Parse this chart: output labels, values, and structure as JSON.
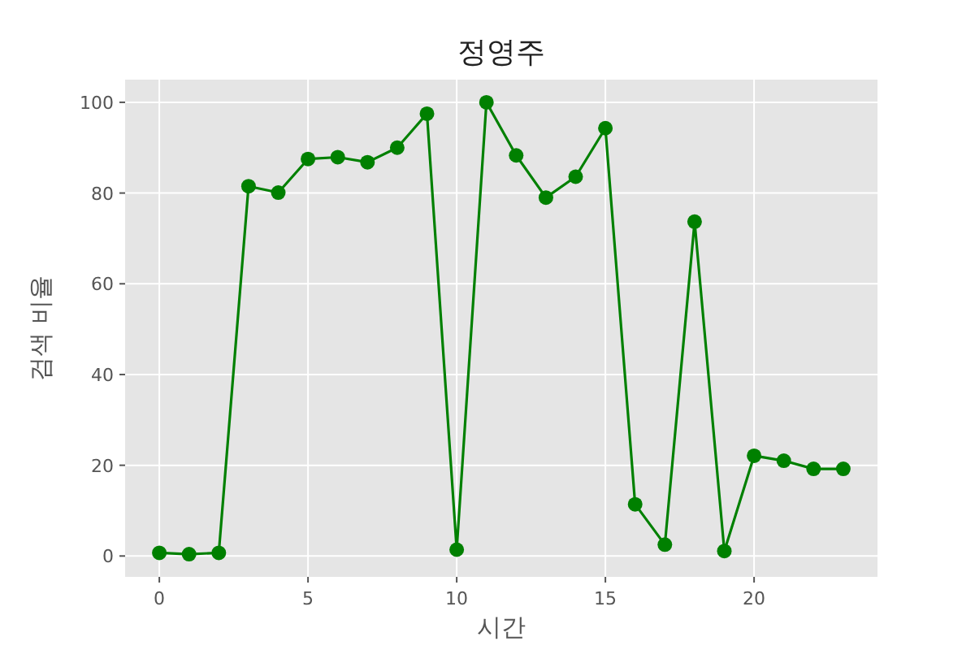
{
  "chart_data": {
    "type": "line",
    "title": "정영주",
    "xlabel": "시간",
    "ylabel": "검색 비율",
    "x": [
      0,
      1,
      2,
      3,
      4,
      5,
      6,
      7,
      8,
      9,
      10,
      11,
      12,
      13,
      14,
      15,
      16,
      17,
      18,
      19,
      20,
      21,
      22,
      23
    ],
    "series": [
      {
        "color": "#008000",
        "values": [
          0.7,
          0.4,
          0.7,
          81.5,
          80.1,
          87.5,
          87.9,
          86.8,
          90.0,
          97.5,
          1.4,
          100,
          88.3,
          79.0,
          83.6,
          94.3,
          11.4,
          2.5,
          73.7,
          1.1,
          22.1,
          21.0,
          19.2,
          19.2
        ]
      }
    ],
    "xlim": [
      -1.15,
      24.15
    ],
    "ylim": [
      -4.6,
      105
    ],
    "xticks": [
      0,
      5,
      10,
      15,
      20
    ],
    "yticks": [
      0,
      20,
      40,
      60,
      80,
      100
    ],
    "grid": true,
    "marker": "circle",
    "line_style": "solid"
  }
}
